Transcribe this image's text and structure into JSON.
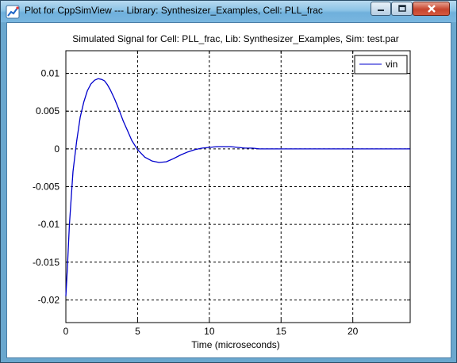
{
  "window": {
    "title": "Plot for CppSimView --- Library: Synthesizer_Examples, Cell: PLL_frac",
    "controls": [
      "minimize",
      "maximize",
      "close"
    ]
  },
  "chart_data": {
    "type": "line",
    "title": "Simulated Signal for Cell: PLL_frac, Lib: Synthesizer_Examples, Sim: test.par",
    "xlabel": "Time (microseconds)",
    "ylabel": "",
    "xlim": [
      0,
      24
    ],
    "ylim": [
      -0.023,
      0.013
    ],
    "xticks": [
      0,
      5,
      10,
      15,
      20
    ],
    "xtick_labels": [
      "0",
      "5",
      "10",
      "15",
      "20"
    ],
    "yticks": [
      0.01,
      0.005,
      0,
      -0.005,
      -0.01,
      -0.015,
      -0.02
    ],
    "ytick_labels": [
      "0.01",
      "0.005",
      "0",
      "-0.005",
      "-0.01",
      "-0.015",
      "-0.02"
    ],
    "grid": true,
    "legend": "top-right",
    "series": [
      {
        "name": "vin",
        "color": "#0000cc",
        "x": [
          0,
          0.1,
          0.25,
          0.5,
          0.75,
          1.0,
          1.25,
          1.5,
          1.75,
          2.0,
          2.25,
          2.5,
          2.7,
          2.9,
          3.1,
          3.4,
          3.7,
          4.0,
          4.3,
          4.6,
          5.0,
          5.5,
          6.0,
          6.5,
          7.0,
          7.5,
          8.0,
          8.5,
          9.0,
          9.5,
          10.0,
          10.5,
          11.0,
          11.5,
          12.0,
          12.5,
          13.0,
          13.5,
          14.0,
          15.0,
          16.0,
          17.0,
          18.0,
          20.0,
          22.0,
          24.0
        ],
        "values": [
          -0.0195,
          -0.016,
          -0.01,
          -0.003,
          0.001,
          0.0042,
          0.0062,
          0.0077,
          0.0086,
          0.0091,
          0.0093,
          0.0092,
          0.009,
          0.0085,
          0.0078,
          0.0066,
          0.0052,
          0.0037,
          0.0024,
          0.0011,
          -0.0001,
          -0.0011,
          -0.0016,
          -0.0018,
          -0.0017,
          -0.0013,
          -0.0008,
          -0.0004,
          -0.0001,
          0.0001,
          0.0002,
          0.0003,
          0.0003,
          0.0003,
          0.0002,
          0.0001,
          0.0001,
          0.0,
          0.0,
          0.0,
          0.0,
          0.0,
          0.0,
          0.0,
          0.0,
          0.0
        ]
      }
    ]
  }
}
